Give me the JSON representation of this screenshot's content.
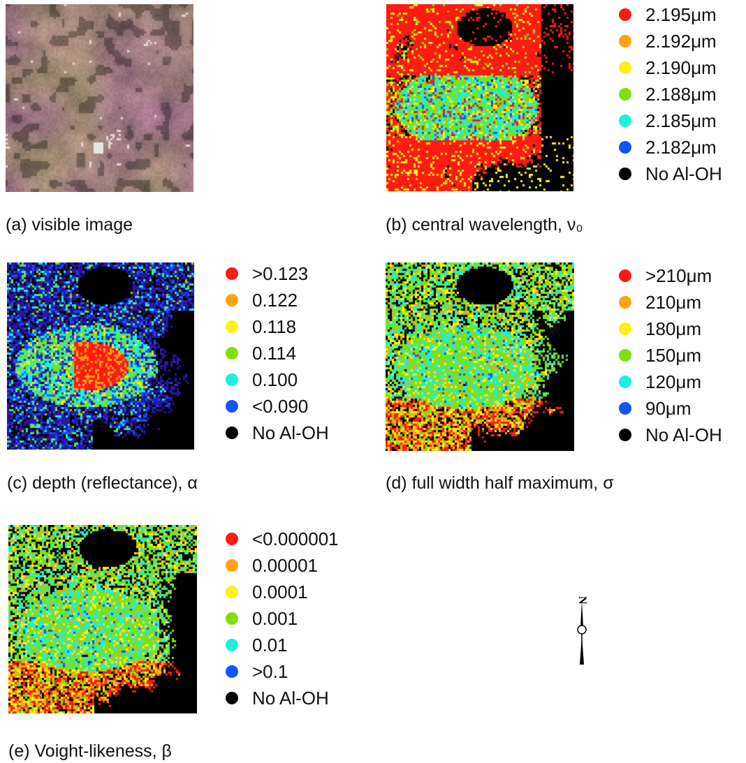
{
  "panels": {
    "a": {
      "caption": "(a) visible image"
    },
    "b": {
      "caption": "(b) central wavelength, ν₀",
      "legend": [
        {
          "label": "2.195μm",
          "color": "#ff1a12"
        },
        {
          "label": "2.192μm",
          "color": "#ffa311"
        },
        {
          "label": "2.190μm",
          "color": "#fff014"
        },
        {
          "label": "2.188μm",
          "color": "#7fe00d"
        },
        {
          "label": "2.185μm",
          "color": "#1cf0e0"
        },
        {
          "label": "2.182μm",
          "color": "#1155f5"
        },
        {
          "label": "No Al-OH",
          "color": "#000000"
        }
      ]
    },
    "c": {
      "caption": "(c) depth (reflectance), α",
      "legend": [
        {
          "label": ">0.123",
          "color": "#ff1a12"
        },
        {
          "label": "0.122",
          "color": "#ffa311"
        },
        {
          "label": "0.118",
          "color": "#fff014"
        },
        {
          "label": "0.114",
          "color": "#7fe00d"
        },
        {
          "label": "0.100",
          "color": "#1cf0e0"
        },
        {
          "label": "<0.090",
          "color": "#1155f5"
        },
        {
          "label": "No Al-OH",
          "color": "#000000"
        }
      ]
    },
    "d": {
      "caption": "(d) full width half maximum, σ",
      "legend": [
        {
          "label": ">210μm",
          "color": "#ff1a12"
        },
        {
          "label": "210μm",
          "color": "#ffa311"
        },
        {
          "label": "180μm",
          "color": "#fff014"
        },
        {
          "label": "150μm",
          "color": "#7fe00d"
        },
        {
          "label": "120μm",
          "color": "#1cf0e0"
        },
        {
          "label": "90μm",
          "color": "#1155f5"
        },
        {
          "label": "No Al-OH",
          "color": "#000000"
        }
      ]
    },
    "e": {
      "caption": "(e) Voight-likeness, β",
      "legend": [
        {
          "label": "<0.000001",
          "color": "#ff1a12"
        },
        {
          "label": "0.00001",
          "color": "#ffa311"
        },
        {
          "label": "0.0001",
          "color": "#fff014"
        },
        {
          "label": "0.001",
          "color": "#7fe00d"
        },
        {
          "label": "0.01",
          "color": "#1cf0e0"
        },
        {
          "label": ">0.1",
          "color": "#1155f5"
        },
        {
          "label": "No Al-OH",
          "color": "#000000"
        }
      ]
    }
  },
  "north_arrow": {
    "label": "N"
  }
}
